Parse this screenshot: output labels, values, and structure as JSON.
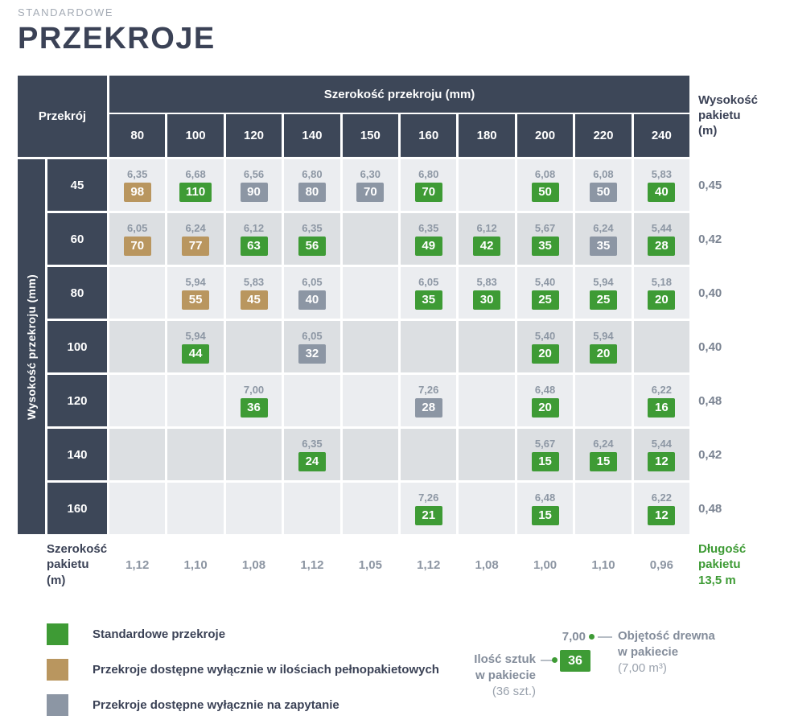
{
  "header": {
    "eyebrow": "STANDARDOWE",
    "title": "PRZEKROJE"
  },
  "table": {
    "corner_label": "Przekrój",
    "col_group_label": "Szerokość przekroju (mm)",
    "row_group_label": "Wysokość przekroju (mm)",
    "right_header": "Wysokość\npakietu\n(m)",
    "footer_label": "Szerokość\npakietu\n(m)",
    "package_length_label": "Długość\npakietu\n13,5 m"
  },
  "chart_data": {
    "type": "table",
    "title": "STANDARDOWE PRZEKROJE",
    "columns": [
      "80",
      "100",
      "120",
      "140",
      "150",
      "160",
      "180",
      "200",
      "220",
      "240"
    ],
    "columns_unit": "Szerokość przekroju (mm)",
    "rows_unit": "Wysokość przekroju (mm)",
    "cell_value_meaning": "volume of wood in package (m3)",
    "cell_badge_meaning": "pieces per package",
    "rows": [
      {
        "label": "45",
        "package_height": "0,45",
        "cells": [
          {
            "v": "6,35",
            "n": "98",
            "c": "tan"
          },
          {
            "v": "6,68",
            "n": "110",
            "c": "green"
          },
          {
            "v": "6,56",
            "n": "90",
            "c": "gray"
          },
          {
            "v": "6,80",
            "n": "80",
            "c": "gray"
          },
          {
            "v": "6,30",
            "n": "70",
            "c": "gray"
          },
          {
            "v": "6,80",
            "n": "70",
            "c": "green"
          },
          null,
          {
            "v": "6,08",
            "n": "50",
            "c": "green"
          },
          {
            "v": "6,08",
            "n": "50",
            "c": "gray"
          },
          {
            "v": "5,83",
            "n": "40",
            "c": "green"
          }
        ]
      },
      {
        "label": "60",
        "package_height": "0,42",
        "cells": [
          {
            "v": "6,05",
            "n": "70",
            "c": "tan"
          },
          {
            "v": "6,24",
            "n": "77",
            "c": "tan"
          },
          {
            "v": "6,12",
            "n": "63",
            "c": "green"
          },
          {
            "v": "6,35",
            "n": "56",
            "c": "green"
          },
          null,
          {
            "v": "6,35",
            "n": "49",
            "c": "green"
          },
          {
            "v": "6,12",
            "n": "42",
            "c": "green"
          },
          {
            "v": "5,67",
            "n": "35",
            "c": "green"
          },
          {
            "v": "6,24",
            "n": "35",
            "c": "gray"
          },
          {
            "v": "5,44",
            "n": "28",
            "c": "green"
          }
        ]
      },
      {
        "label": "80",
        "package_height": "0,40",
        "cells": [
          null,
          {
            "v": "5,94",
            "n": "55",
            "c": "tan"
          },
          {
            "v": "5,83",
            "n": "45",
            "c": "tan"
          },
          {
            "v": "6,05",
            "n": "40",
            "c": "gray"
          },
          null,
          {
            "v": "6,05",
            "n": "35",
            "c": "green"
          },
          {
            "v": "5,83",
            "n": "30",
            "c": "green"
          },
          {
            "v": "5,40",
            "n": "25",
            "c": "green"
          },
          {
            "v": "5,94",
            "n": "25",
            "c": "green"
          },
          {
            "v": "5,18",
            "n": "20",
            "c": "green"
          }
        ]
      },
      {
        "label": "100",
        "package_height": "0,40",
        "cells": [
          null,
          {
            "v": "5,94",
            "n": "44",
            "c": "green"
          },
          null,
          {
            "v": "6,05",
            "n": "32",
            "c": "gray"
          },
          null,
          null,
          null,
          {
            "v": "5,40",
            "n": "20",
            "c": "green"
          },
          {
            "v": "5,94",
            "n": "20",
            "c": "green"
          },
          null
        ]
      },
      {
        "label": "120",
        "package_height": "0,48",
        "cells": [
          null,
          null,
          {
            "v": "7,00",
            "n": "36",
            "c": "green"
          },
          null,
          null,
          {
            "v": "7,26",
            "n": "28",
            "c": "gray"
          },
          null,
          {
            "v": "6,48",
            "n": "20",
            "c": "green"
          },
          null,
          {
            "v": "6,22",
            "n": "16",
            "c": "green"
          }
        ]
      },
      {
        "label": "140",
        "package_height": "0,42",
        "cells": [
          null,
          null,
          null,
          {
            "v": "6,35",
            "n": "24",
            "c": "green"
          },
          null,
          null,
          null,
          {
            "v": "5,67",
            "n": "15",
            "c": "green"
          },
          {
            "v": "6,24",
            "n": "15",
            "c": "green"
          },
          {
            "v": "5,44",
            "n": "12",
            "c": "green"
          }
        ]
      },
      {
        "label": "160",
        "package_height": "0,48",
        "cells": [
          null,
          null,
          null,
          null,
          null,
          {
            "v": "7,26",
            "n": "21",
            "c": "green"
          },
          null,
          {
            "v": "6,48",
            "n": "15",
            "c": "green"
          },
          null,
          {
            "v": "6,22",
            "n": "12",
            "c": "green"
          }
        ]
      }
    ],
    "package_widths": [
      "1,12",
      "1,10",
      "1,08",
      "1,12",
      "1,05",
      "1,12",
      "1,08",
      "1,00",
      "1,10",
      "0,96"
    ],
    "package_length": "13,5 m"
  },
  "legend": {
    "items": [
      {
        "color_key": "green",
        "label": "Standardowe przekroje"
      },
      {
        "color_key": "tan",
        "label": "Przekroje dostępne wyłącznie w ilościach pełnopakietowych"
      },
      {
        "color_key": "gray",
        "label": "Przekroje dostępne wyłącznie na zapytanie"
      }
    ]
  },
  "callout": {
    "volume_value": "7,00",
    "count_value": "36",
    "left_line1": "Ilość sztuk",
    "left_line2": "w pakiecie",
    "left_sub": "(36 szt.)",
    "right_line1": "Objętość drewna",
    "right_line2": "w pakiecie",
    "right_sub": "(7,00 m³)"
  },
  "colors": {
    "green": "#3e9b35",
    "tan": "#b9965f",
    "gray": "#8c96a4",
    "navy": "#3d4758"
  }
}
